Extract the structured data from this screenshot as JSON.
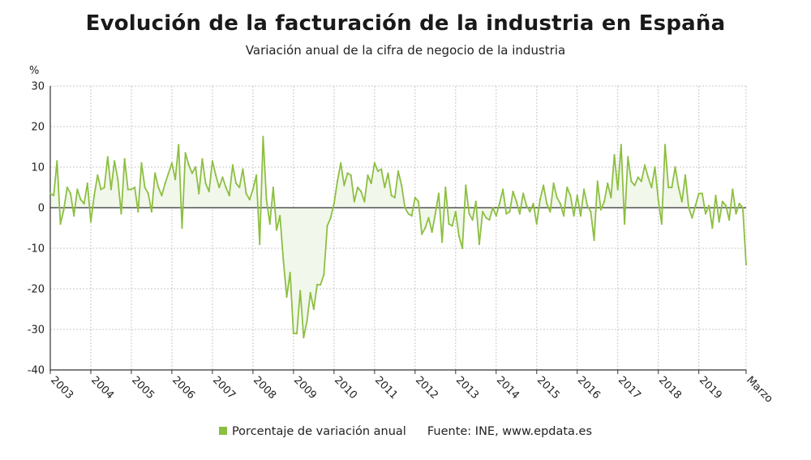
{
  "title": "Evolución de la facturación de la industria en España",
  "subtitle": "Variación anual de la cifra de negocio de la industria",
  "legend": {
    "label": "Porcentaje de variación anual",
    "source": "Fuente: INE, www.epdata.es"
  },
  "colors": {
    "line": "#8dbf42",
    "fill": "#f1f7ea",
    "zero_line": "#333333",
    "grid": "#c8c8c8",
    "axis": "#333333"
  },
  "chart_data": {
    "type": "line",
    "title": "Evolución de la facturación de la industria en España",
    "subtitle": "Variación anual de la cifra de negocio de la industria",
    "ylabel": "%",
    "xlabel": "",
    "ylim": [
      -40,
      30
    ],
    "yticks": [
      30,
      20,
      10,
      0,
      -10,
      -20,
      -30,
      -40
    ],
    "xlim": [
      "2003-01",
      "2020-03"
    ],
    "xticks": [
      "2003",
      "2004",
      "2005",
      "2006",
      "2007",
      "2008",
      "2009",
      "2010",
      "2011",
      "2012",
      "2013",
      "2014",
      "2015",
      "2016",
      "2017",
      "2018",
      "2019",
      "Marzo"
    ],
    "grid": true,
    "legend_position": "bottom",
    "series": [
      {
        "name": "Porcentaje de variación anual",
        "x": [
          "2003-01",
          "2003-02",
          "2003-03",
          "2003-04",
          "2003-05",
          "2003-06",
          "2003-07",
          "2003-08",
          "2003-09",
          "2003-10",
          "2003-11",
          "2003-12",
          "2004-01",
          "2004-02",
          "2004-03",
          "2004-04",
          "2004-05",
          "2004-06",
          "2004-07",
          "2004-08",
          "2004-09",
          "2004-10",
          "2004-11",
          "2004-12",
          "2005-01",
          "2005-02",
          "2005-03",
          "2005-04",
          "2005-05",
          "2005-06",
          "2005-07",
          "2005-08",
          "2005-09",
          "2005-10",
          "2005-11",
          "2005-12",
          "2006-01",
          "2006-02",
          "2006-03",
          "2006-04",
          "2006-05",
          "2006-06",
          "2006-07",
          "2006-08",
          "2006-09",
          "2006-10",
          "2006-11",
          "2006-12",
          "2007-01",
          "2007-02",
          "2007-03",
          "2007-04",
          "2007-05",
          "2007-06",
          "2007-07",
          "2007-08",
          "2007-09",
          "2007-10",
          "2007-11",
          "2007-12",
          "2008-01",
          "2008-02",
          "2008-03",
          "2008-04",
          "2008-05",
          "2008-06",
          "2008-07",
          "2008-08",
          "2008-09",
          "2008-10",
          "2008-11",
          "2008-12",
          "2009-01",
          "2009-02",
          "2009-03",
          "2009-04",
          "2009-05",
          "2009-06",
          "2009-07",
          "2009-08",
          "2009-09",
          "2009-10",
          "2009-11",
          "2009-12",
          "2010-01",
          "2010-02",
          "2010-03",
          "2010-04",
          "2010-05",
          "2010-06",
          "2010-07",
          "2010-08",
          "2010-09",
          "2010-10",
          "2010-11",
          "2010-12",
          "2011-01",
          "2011-02",
          "2011-03",
          "2011-04",
          "2011-05",
          "2011-06",
          "2011-07",
          "2011-08",
          "2011-09",
          "2011-10",
          "2011-11",
          "2011-12",
          "2012-01",
          "2012-02",
          "2012-03",
          "2012-04",
          "2012-05",
          "2012-06",
          "2012-07",
          "2012-08",
          "2012-09",
          "2012-10",
          "2012-11",
          "2012-12",
          "2013-01",
          "2013-02",
          "2013-03",
          "2013-04",
          "2013-05",
          "2013-06",
          "2013-07",
          "2013-08",
          "2013-09",
          "2013-10",
          "2013-11",
          "2013-12",
          "2014-01",
          "2014-02",
          "2014-03",
          "2014-04",
          "2014-05",
          "2014-06",
          "2014-07",
          "2014-08",
          "2014-09",
          "2014-10",
          "2014-11",
          "2014-12",
          "2015-01",
          "2015-02",
          "2015-03",
          "2015-04",
          "2015-05",
          "2015-06",
          "2015-07",
          "2015-08",
          "2015-09",
          "2015-10",
          "2015-11",
          "2015-12",
          "2016-01",
          "2016-02",
          "2016-03",
          "2016-04",
          "2016-05",
          "2016-06",
          "2016-07",
          "2016-08",
          "2016-09",
          "2016-10",
          "2016-11",
          "2016-12",
          "2017-01",
          "2017-02",
          "2017-03",
          "2017-04",
          "2017-05",
          "2017-06",
          "2017-07",
          "2017-08",
          "2017-09",
          "2017-10",
          "2017-11",
          "2017-12",
          "2018-01",
          "2018-02",
          "2018-03",
          "2018-04",
          "2018-05",
          "2018-06",
          "2018-07",
          "2018-08",
          "2018-09",
          "2018-10",
          "2018-11",
          "2018-12",
          "2019-01",
          "2019-02",
          "2019-03",
          "2019-04",
          "2019-05",
          "2019-06",
          "2019-07",
          "2019-08",
          "2019-09",
          "2019-10",
          "2019-11",
          "2019-12",
          "2020-01",
          "2020-02",
          "2020-03"
        ],
        "values": [
          3.5,
          3.0,
          11.5,
          -4.0,
          -0.5,
          5.0,
          3.5,
          -2.0,
          4.5,
          2.0,
          1.0,
          6.0,
          -3.5,
          3.0,
          8.0,
          4.5,
          5.0,
          12.5,
          4.5,
          11.5,
          7.0,
          -1.5,
          12.0,
          4.5,
          4.5,
          5.0,
          -1.0,
          11.0,
          5.0,
          3.5,
          -1.0,
          8.5,
          5.0,
          3.0,
          6.0,
          8.5,
          11.0,
          7.0,
          15.5,
          -5.0,
          13.5,
          10.5,
          8.5,
          10.0,
          3.5,
          12.0,
          6.0,
          4.0,
          11.5,
          8.0,
          5.0,
          7.5,
          5.0,
          3.0,
          10.5,
          6.0,
          5.0,
          9.5,
          3.5,
          2.0,
          4.5,
          8.0,
          -9.0,
          17.5,
          2.0,
          -4.0,
          5.0,
          -5.5,
          -2.0,
          -13.0,
          -22.0,
          -16.0,
          -31.0,
          -31.0,
          -20.5,
          -32.0,
          -28.0,
          -21.0,
          -25.0,
          -19.0,
          -19.0,
          -16.5,
          -4.5,
          -2.5,
          1.0,
          6.5,
          11.0,
          5.5,
          8.5,
          8.0,
          1.5,
          5.0,
          4.0,
          1.5,
          8.0,
          6.0,
          11.0,
          9.0,
          9.5,
          5.0,
          8.5,
          3.0,
          2.5,
          9.0,
          5.5,
          0.0,
          -1.5,
          -2.0,
          2.5,
          1.5,
          -6.5,
          -5.0,
          -2.5,
          -6.0,
          -1.5,
          3.5,
          -8.5,
          5.0,
          -4.0,
          -4.5,
          -1.0,
          -7.0,
          -10.0,
          5.5,
          -1.5,
          -3.0,
          1.5,
          -9.0,
          -1.0,
          -2.5,
          -3.0,
          0.0,
          -2.0,
          1.0,
          4.5,
          -1.5,
          -1.0,
          4.0,
          1.5,
          -1.5,
          3.5,
          0.5,
          -1.0,
          1.0,
          -4.0,
          2.0,
          5.5,
          1.0,
          -1.0,
          6.0,
          2.5,
          1.0,
          -2.0,
          5.0,
          3.0,
          -2.0,
          3.0,
          -2.0,
          4.5,
          0.5,
          -1.0,
          -8.0,
          6.5,
          -0.5,
          1.5,
          6.0,
          2.5,
          13.0,
          4.5,
          15.5,
          -4.0,
          12.5,
          6.5,
          5.5,
          7.5,
          6.5,
          10.5,
          7.5,
          5.0,
          10.0,
          2.0,
          -4.0,
          15.5,
          5.0,
          5.0,
          10.0,
          5.0,
          1.5,
          8.0,
          0.0,
          -2.5,
          0.5,
          3.5,
          3.5,
          -1.5,
          0.5,
          -5.0,
          3.0,
          -3.5,
          1.5,
          0.5,
          -3.0,
          4.5,
          -1.5,
          1.0,
          0.0,
          -14.0
        ]
      }
    ]
  }
}
